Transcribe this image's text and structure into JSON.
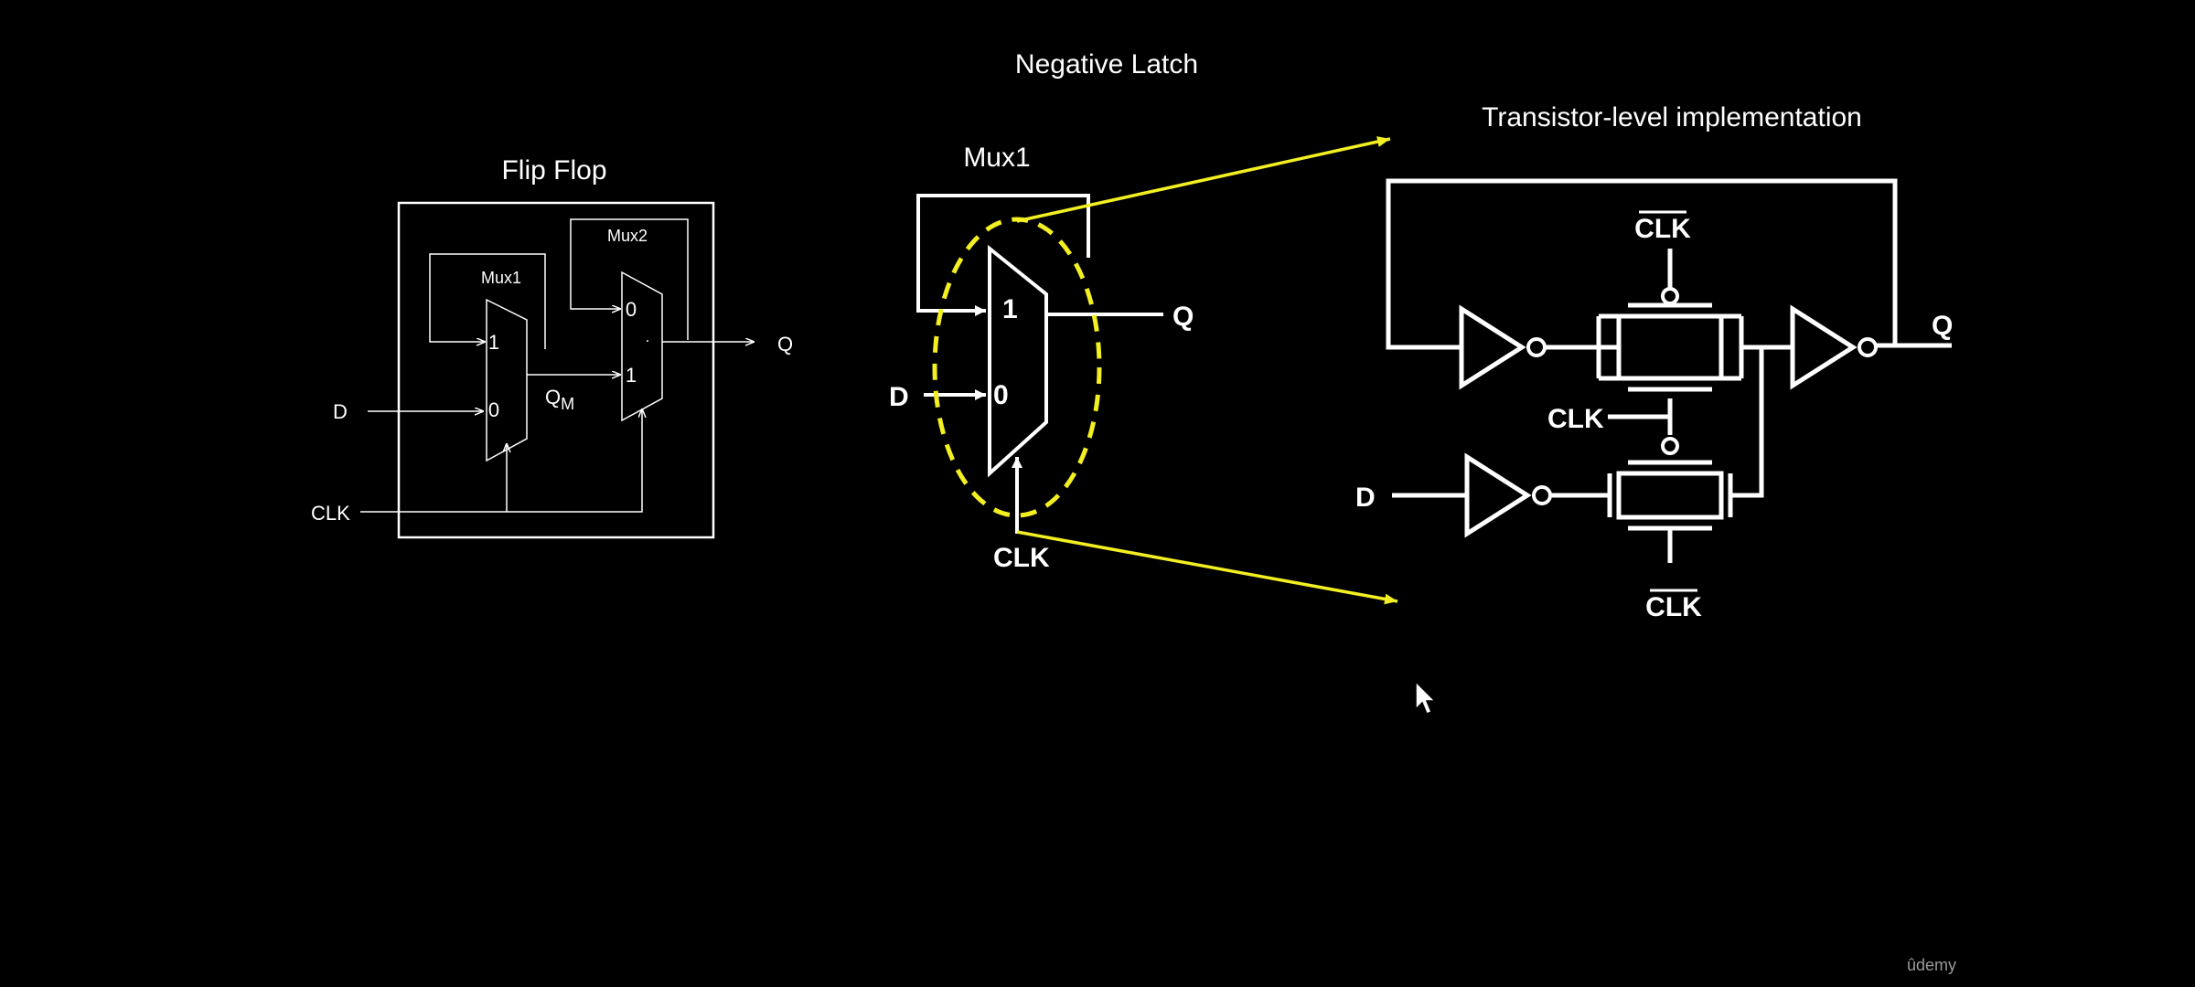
{
  "slide": {
    "title": "Negative Latch",
    "watermark": "ûdemy"
  },
  "flip_flop": {
    "title": "Flip Flop",
    "mux1_label": "Mux1",
    "mux2_label": "Mux2",
    "mux1_in_top": "1",
    "mux1_in_bottom": "0",
    "mux2_in_top": "0",
    "mux2_in_bottom": "1",
    "qm_label": "Q",
    "qm_sub": "M",
    "d_label": "D",
    "clk_label": "CLK",
    "q_label": "Q"
  },
  "latch": {
    "mux_label": "Mux1",
    "in_top": "1",
    "in_bottom": "0",
    "d_label": "D",
    "clk_label": "CLK",
    "q_label": "Q"
  },
  "transistor": {
    "title": "Transistor-level implementation",
    "clkbar_top": "CLK",
    "clk_mid": "CLK",
    "clkbar_bottom": "CLK",
    "d_label": "D",
    "q_label": "Q"
  }
}
